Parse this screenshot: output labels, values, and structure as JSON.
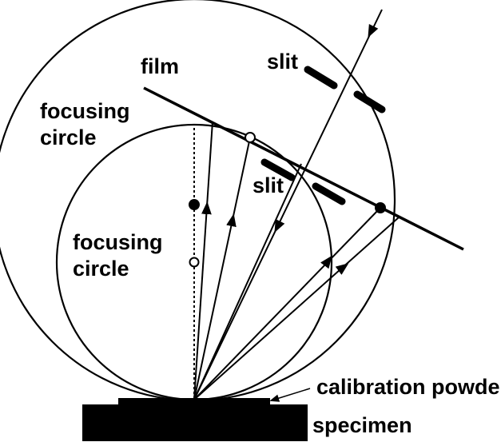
{
  "labels": {
    "film": "film",
    "slit_top": "slit",
    "slit_middle": "slit",
    "focusing_circle_outer_line1": "focusing",
    "focusing_circle_outer_line2": "circle",
    "focusing_circle_inner_line1": "focusing",
    "focusing_circle_inner_line2": "circle",
    "calibration_powder": "calibration powder",
    "specimen": "specimen"
  },
  "colors": {
    "ink": "#000000",
    "background": "#ffffff"
  }
}
